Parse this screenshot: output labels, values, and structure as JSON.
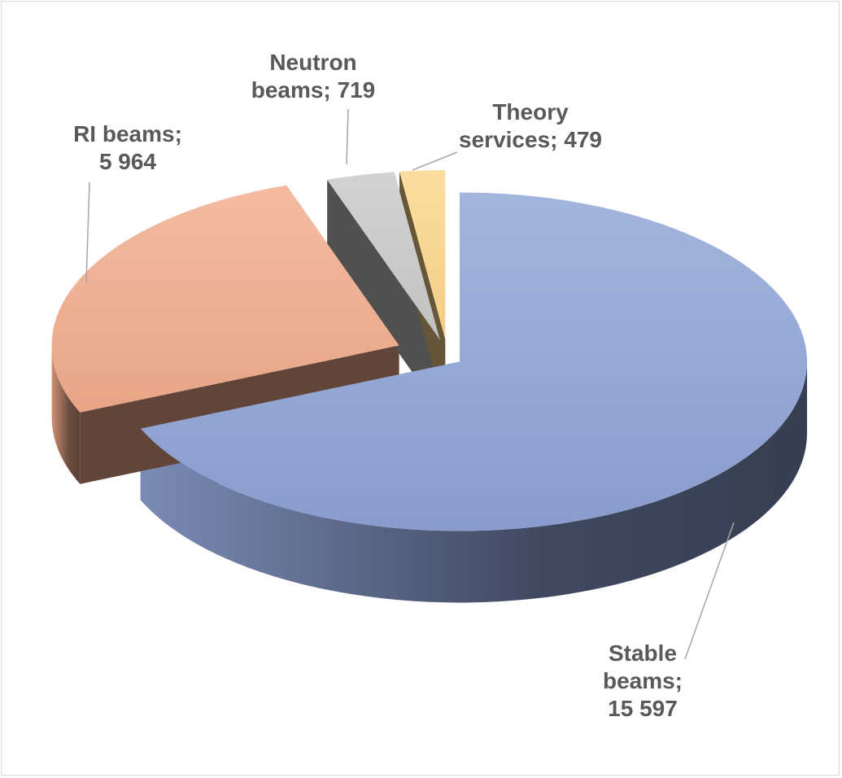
{
  "chart_data": {
    "type": "pie",
    "style": "3d-exploded",
    "slices": [
      {
        "label": "Stable beams",
        "value": 15597,
        "value_text": "15 597",
        "label_lines": [
          "Stable",
          "beams;",
          "15 597"
        ],
        "color": "#8FA3D6"
      },
      {
        "label": "RI beams",
        "value": 5964,
        "value_text": "5 964",
        "label_lines": [
          "RI beams;",
          "5 964"
        ],
        "color": "#F2AC8C"
      },
      {
        "label": "Neutron beams",
        "value": 719,
        "value_text": "719",
        "label_lines": [
          "Neutron",
          "beams; 719"
        ],
        "color": "#C9C9C9"
      },
      {
        "label": "Theory services",
        "value": 479,
        "value_text": "479",
        "label_lines": [
          "Theory",
          "services; 479"
        ],
        "color": "#FCD68A"
      }
    ],
    "legend": "none",
    "data_labels": "category; value"
  }
}
